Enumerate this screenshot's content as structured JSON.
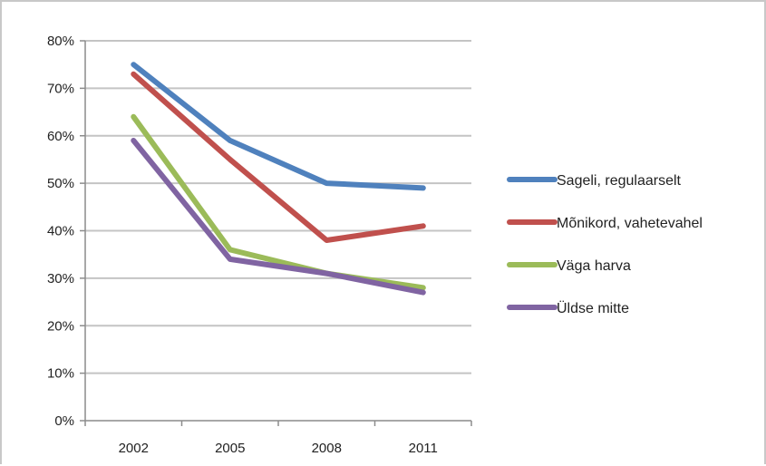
{
  "chart_data": {
    "type": "line",
    "title": "",
    "xlabel": "",
    "ylabel": "",
    "categories": [
      "2002",
      "2005",
      "2008",
      "2011"
    ],
    "ylim": [
      0,
      80
    ],
    "y_ticks": [
      "0%",
      "10%",
      "20%",
      "30%",
      "40%",
      "50%",
      "60%",
      "70%",
      "80%"
    ],
    "y_tick_values": [
      0,
      10,
      20,
      30,
      40,
      50,
      60,
      70,
      80
    ],
    "grid": true,
    "legend_position": "right",
    "series": [
      {
        "name": "Sageli, regulaarselt",
        "color": "#4f81bd",
        "values": [
          75,
          59,
          50,
          49
        ]
      },
      {
        "name": "Mõnikord, vahetevahel",
        "color": "#c0504d",
        "values": [
          73,
          55,
          38,
          41
        ]
      },
      {
        "name": "Väga harva",
        "color": "#9bbb59",
        "values": [
          64,
          36,
          31,
          28
        ]
      },
      {
        "name": "Üldse mitte",
        "color": "#8064a2",
        "values": [
          59,
          34,
          31,
          27
        ]
      }
    ]
  }
}
